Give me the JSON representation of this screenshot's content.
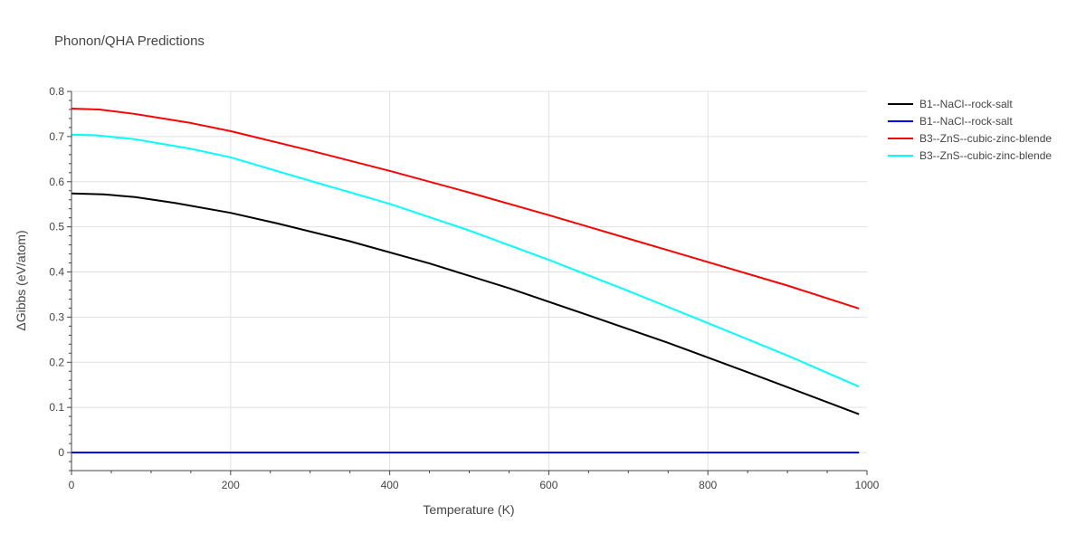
{
  "chart_data": {
    "type": "line",
    "title": "Phonon/QHA Predictions",
    "xlabel": "Temperature (K)",
    "ylabel": "ΔGibbs (eV/atom)",
    "xlim": [
      0,
      1000
    ],
    "ylim": [
      -0.04,
      0.8
    ],
    "xticks": [
      0,
      200,
      400,
      600,
      800,
      1000
    ],
    "yticks": [
      0,
      0.1,
      0.2,
      0.3,
      0.4,
      0.5,
      0.6,
      0.7,
      0.8
    ],
    "ytick_labels": [
      "0",
      "0.1",
      "0.2",
      "0.3",
      "0.4",
      "0.5",
      "0.6",
      "0.7",
      "0.8"
    ],
    "grid": true,
    "legend_position": "top-right",
    "series": [
      {
        "name": "B1--NaCl--rock-salt",
        "color": "#000000",
        "x": [
          0,
          40,
          80,
          130,
          200,
          260,
          350,
          450,
          550,
          650,
          750,
          850,
          990
        ],
        "y": [
          0.574,
          0.572,
          0.566,
          0.553,
          0.531,
          0.507,
          0.468,
          0.419,
          0.364,
          0.304,
          0.243,
          0.178,
          0.085
        ]
      },
      {
        "name": "B1--NaCl--rock-salt",
        "color": "#0000ff",
        "x": [
          0,
          990
        ],
        "y": [
          0,
          0
        ]
      },
      {
        "name": "B3--ZnS--cubic-zinc-blende",
        "color": "#ff0000",
        "x": [
          0,
          35,
          80,
          150,
          200,
          300,
          400,
          500,
          600,
          700,
          800,
          900,
          990
        ],
        "y": [
          0.762,
          0.76,
          0.75,
          0.73,
          0.712,
          0.669,
          0.624,
          0.576,
          0.526,
          0.474,
          0.422,
          0.37,
          0.319
        ]
      },
      {
        "name": "B3--ZnS--cubic-zinc-blende",
        "color": "#00ffff",
        "x": [
          0,
          30,
          80,
          150,
          200,
          300,
          400,
          500,
          600,
          700,
          800,
          900,
          990
        ],
        "y": [
          0.704,
          0.703,
          0.694,
          0.673,
          0.654,
          0.602,
          0.551,
          0.492,
          0.427,
          0.358,
          0.287,
          0.215,
          0.146
        ]
      }
    ]
  }
}
